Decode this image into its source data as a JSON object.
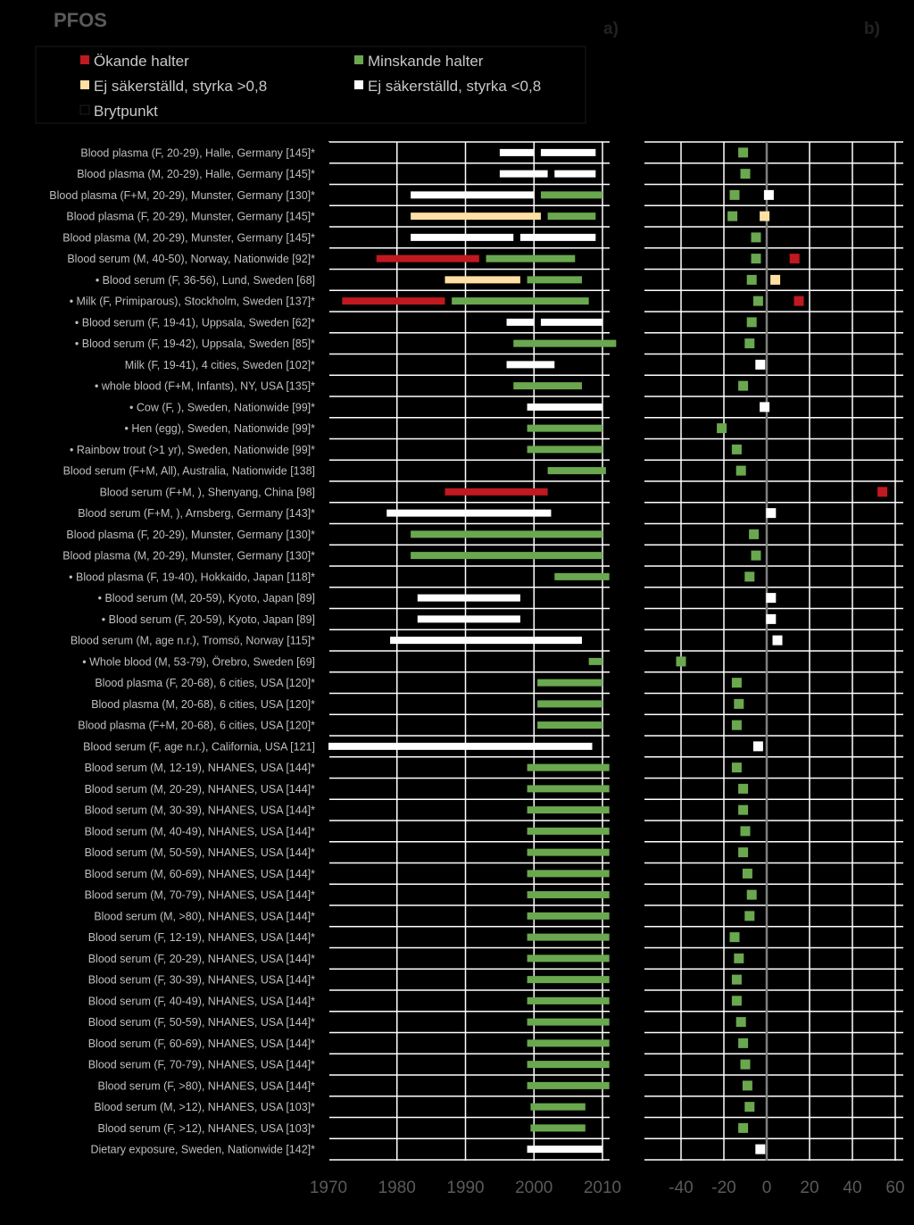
{
  "chart_data": {
    "type": "bar",
    "title": "PFOS",
    "panel_labels": [
      "a)",
      "b)"
    ],
    "colors": {
      "increasing": "#c0191f",
      "decreasing": "#6aa84f",
      "ns_strong": "#fde0a2",
      "ns_weak": "#ffffff",
      "breakpoint": "#000000",
      "gridline": "#ffffff",
      "zero_line": "#7f7f7f"
    },
    "legend": [
      {
        "key": "increasing",
        "label": "Ökande halter"
      },
      {
        "key": "decreasing",
        "label": "Minskande halter"
      },
      {
        "key": "ns_strong",
        "label": "Ej säkerställd, styrka >0,8"
      },
      {
        "key": "ns_weak",
        "label": "Ej säkerställd, styrka <0,8"
      },
      {
        "key": "breakpoint",
        "label": "Brytpunkt"
      }
    ],
    "panel_a": {
      "x_ticks": [
        1970,
        1980,
        1990,
        2000,
        2010
      ],
      "xlim": [
        1970,
        2010
      ]
    },
    "panel_b": {
      "x_ticks": [
        -40,
        -20,
        0,
        20,
        40,
        60
      ],
      "xlim": [
        -50,
        60
      ]
    },
    "rows": [
      {
        "label": "Blood plasma (F, 20-29), Halle, Germany [145]*",
        "segments": [
          [
            1995,
            2000,
            "ns_weak"
          ],
          [
            2001,
            2009,
            "ns_weak"
          ]
        ],
        "change": -11,
        "change_type": "decreasing"
      },
      {
        "label": "Blood plasma (M, 20-29), Halle, Germany [145]*",
        "segments": [
          [
            1995,
            2002,
            "ns_weak"
          ],
          [
            2003,
            2009,
            "ns_weak"
          ]
        ],
        "change": -10,
        "change_type": "decreasing"
      },
      {
        "label": "Blood plasma (F+M, 20-29), Munster, Germany [130]*",
        "segments": [
          [
            1982,
            2000,
            "ns_weak"
          ],
          [
            2001,
            2010,
            "decreasing"
          ]
        ],
        "change": -15,
        "change_type": "decreasing",
        "change2": 1,
        "change2_type": "ns_weak"
      },
      {
        "label": "Blood plasma (F, 20-29), Munster, Germany [145]*",
        "segments": [
          [
            1982,
            2001,
            "ns_strong"
          ],
          [
            2002,
            2009,
            "decreasing"
          ]
        ],
        "change": -16,
        "change_type": "decreasing",
        "change2": -1,
        "change2_type": "ns_strong"
      },
      {
        "label": "Blood plasma (M, 20-29), Munster, Germany [145]*",
        "segments": [
          [
            1982,
            1997,
            "ns_weak"
          ],
          [
            1998,
            2009,
            "ns_weak"
          ]
        ],
        "change": -5,
        "change_type": "decreasing"
      },
      {
        "label": "Blood serum (M, 40-50), Norway, Nationwide [92]*",
        "segments": [
          [
            1977,
            1992,
            "increasing"
          ],
          [
            1993,
            2006,
            "decreasing"
          ]
        ],
        "change": -5,
        "change_type": "decreasing",
        "change2": 13,
        "change2_type": "increasing"
      },
      {
        "label": "• Blood serum (F, 36-56), Lund, Sweden [68]",
        "segments": [
          [
            1987,
            1998,
            "ns_strong"
          ],
          [
            1999,
            2007,
            "decreasing"
          ]
        ],
        "change": -7,
        "change_type": "decreasing",
        "change2": 4,
        "change2_type": "ns_strong"
      },
      {
        "label": "• Milk (F, Primiparous), Stockholm, Sweden [137]*",
        "segments": [
          [
            1972,
            1987,
            "increasing"
          ],
          [
            1988,
            2008,
            "decreasing"
          ]
        ],
        "change": -4,
        "change_type": "decreasing",
        "change2": 15,
        "change2_type": "increasing"
      },
      {
        "label": "• Blood serum (F, 19-41), Uppsala, Sweden [62]*",
        "segments": [
          [
            1996,
            2000,
            "ns_weak"
          ],
          [
            2001,
            2010,
            "ns_weak"
          ]
        ],
        "change": -7,
        "change_type": "decreasing"
      },
      {
        "label": "• Blood serum (F, 19-42), Uppsala, Sweden [85]*",
        "segments": [
          [
            1997,
            2012,
            "decreasing"
          ]
        ],
        "change": -8,
        "change_type": "decreasing"
      },
      {
        "label": "Milk (F, 19-41), 4 cities, Sweden [102]*",
        "segments": [
          [
            1996,
            2003,
            "ns_weak"
          ]
        ],
        "change": -3,
        "change_type": "ns_weak"
      },
      {
        "label": "• whole blood (F+M, Infants), NY, USA [135]*",
        "segments": [
          [
            1997,
            2007,
            "decreasing"
          ]
        ],
        "change": -11,
        "change_type": "decreasing"
      },
      {
        "label": "• Cow (F, ), Sweden, Nationwide [99]*",
        "segments": [
          [
            1999,
            2010,
            "ns_weak"
          ]
        ],
        "change": -1,
        "change_type": "ns_weak"
      },
      {
        "label": "• Hen (egg), Sweden, Nationwide [99]*",
        "segments": [
          [
            1999,
            2010,
            "decreasing"
          ]
        ],
        "change": -21,
        "change_type": "decreasing"
      },
      {
        "label": "• Rainbow trout (>1 yr), Sweden, Nationwide [99]*",
        "segments": [
          [
            1999,
            2010,
            "decreasing"
          ]
        ],
        "change": -14,
        "change_type": "decreasing"
      },
      {
        "label": "Blood serum (F+M, All), Australia, Nationwide [138]",
        "segments": [
          [
            2002,
            2010.5,
            "decreasing"
          ]
        ],
        "change": -12,
        "change_type": "decreasing"
      },
      {
        "label": "Blood serum (F+M, ), Shenyang, China [98]",
        "segments": [
          [
            1987,
            2002,
            "increasing"
          ]
        ],
        "change": 54,
        "change_type": "increasing"
      },
      {
        "label": "Blood serum (F+M, ), Arnsberg, Germany [143]*",
        "segments": [
          [
            1978.5,
            2002.5,
            "ns_weak"
          ]
        ],
        "change": 2,
        "change_type": "ns_weak"
      },
      {
        "label": "Blood plasma (F, 20-29), Munster, Germany [130]*",
        "segments": [
          [
            1982,
            2010,
            "decreasing"
          ]
        ],
        "change": -6,
        "change_type": "decreasing"
      },
      {
        "label": "Blood plasma (M, 20-29), Munster, Germany [130]*",
        "segments": [
          [
            1982,
            2010,
            "decreasing"
          ]
        ],
        "change": -5,
        "change_type": "decreasing"
      },
      {
        "label": "• Blood plasma (F, 19-40), Hokkaido, Japan [118]*",
        "segments": [
          [
            2003,
            2011,
            "decreasing"
          ]
        ],
        "change": -8,
        "change_type": "decreasing"
      },
      {
        "label": "• Blood serum (M, 20-59), Kyoto, Japan [89]",
        "segments": [
          [
            1983,
            1998,
            "ns_weak"
          ]
        ],
        "change": 2,
        "change_type": "ns_weak"
      },
      {
        "label": "• Blood serum (F, 20-59), Kyoto, Japan [89]",
        "segments": [
          [
            1983,
            1998,
            "ns_weak"
          ]
        ],
        "change": 2,
        "change_type": "ns_weak"
      },
      {
        "label": "Blood serum (M, age n.r.), Tromsö, Norway [115]*",
        "segments": [
          [
            1979,
            2007,
            "ns_weak"
          ]
        ],
        "change": 5,
        "change_type": "ns_weak"
      },
      {
        "label": "• Whole blood (M, 53-79), Örebro, Sweden [69]",
        "segments": [
          [
            2008,
            2010,
            "decreasing"
          ]
        ],
        "change": -40,
        "change_type": "decreasing"
      },
      {
        "label": "Blood plasma (F, 20-68), 6 cities, USA [120]*",
        "segments": [
          [
            2000.5,
            2010,
            "decreasing"
          ]
        ],
        "change": -14,
        "change_type": "decreasing"
      },
      {
        "label": "Blood plasma (M, 20-68), 6 cities, USA [120]*",
        "segments": [
          [
            2000.5,
            2010,
            "decreasing"
          ]
        ],
        "change": -13,
        "change_type": "decreasing"
      },
      {
        "label": "Blood plasma (F+M, 20-68), 6 cities, USA [120]*",
        "segments": [
          [
            2000.5,
            2010,
            "decreasing"
          ]
        ],
        "change": -14,
        "change_type": "decreasing"
      },
      {
        "label": "Blood serum (F, age n.r.), California, USA [121]",
        "segments": [
          [
            1970,
            2008.5,
            "ns_weak"
          ]
        ],
        "change": -4,
        "change_type": "ns_weak"
      },
      {
        "label": "Blood serum (M, 12-19), NHANES, USA [144]*",
        "segments": [
          [
            1999,
            2011,
            "decreasing"
          ]
        ],
        "change": -14,
        "change_type": "decreasing"
      },
      {
        "label": "Blood serum (M, 20-29), NHANES, USA [144]*",
        "segments": [
          [
            1999,
            2011,
            "decreasing"
          ]
        ],
        "change": -11,
        "change_type": "decreasing"
      },
      {
        "label": "Blood serum (M, 30-39), NHANES, USA [144]*",
        "segments": [
          [
            1999,
            2011,
            "decreasing"
          ]
        ],
        "change": -11,
        "change_type": "decreasing"
      },
      {
        "label": "Blood serum (M, 40-49), NHANES, USA [144]*",
        "segments": [
          [
            1999,
            2011,
            "decreasing"
          ]
        ],
        "change": -10,
        "change_type": "decreasing"
      },
      {
        "label": "Blood serum (M, 50-59), NHANES, USA [144]*",
        "segments": [
          [
            1999,
            2011,
            "decreasing"
          ]
        ],
        "change": -11,
        "change_type": "decreasing"
      },
      {
        "label": "Blood serum (M, 60-69), NHANES, USA [144]*",
        "segments": [
          [
            1999,
            2011,
            "decreasing"
          ]
        ],
        "change": -9,
        "change_type": "decreasing"
      },
      {
        "label": "Blood serum (M, 70-79), NHANES, USA [144]*",
        "segments": [
          [
            1999,
            2011,
            "decreasing"
          ]
        ],
        "change": -7,
        "change_type": "decreasing"
      },
      {
        "label": "Blood serum (M, >80), NHANES, USA [144]*",
        "segments": [
          [
            1999,
            2011,
            "decreasing"
          ]
        ],
        "change": -8,
        "change_type": "decreasing"
      },
      {
        "label": "Blood serum (F, 12-19), NHANES, USA [144]*",
        "segments": [
          [
            1999,
            2011,
            "decreasing"
          ]
        ],
        "change": -15,
        "change_type": "decreasing"
      },
      {
        "label": "Blood serum (F, 20-29), NHANES, USA [144]*",
        "segments": [
          [
            1999,
            2011,
            "decreasing"
          ]
        ],
        "change": -13,
        "change_type": "decreasing"
      },
      {
        "label": "Blood serum (F, 30-39), NHANES, USA [144]*",
        "segments": [
          [
            1999,
            2011,
            "decreasing"
          ]
        ],
        "change": -14,
        "change_type": "decreasing"
      },
      {
        "label": "Blood serum (F, 40-49), NHANES, USA [144]*",
        "segments": [
          [
            1999,
            2011,
            "decreasing"
          ]
        ],
        "change": -14,
        "change_type": "decreasing"
      },
      {
        "label": "Blood serum (F, 50-59), NHANES, USA [144]*",
        "segments": [
          [
            1999,
            2011,
            "decreasing"
          ]
        ],
        "change": -12,
        "change_type": "decreasing"
      },
      {
        "label": "Blood serum (F, 60-69), NHANES, USA [144]*",
        "segments": [
          [
            1999,
            2011,
            "decreasing"
          ]
        ],
        "change": -11,
        "change_type": "decreasing"
      },
      {
        "label": "Blood serum (F, 70-79), NHANES, USA [144]*",
        "segments": [
          [
            1999,
            2011,
            "decreasing"
          ]
        ],
        "change": -10,
        "change_type": "decreasing"
      },
      {
        "label": "Blood serum (F, >80), NHANES, USA [144]*",
        "segments": [
          [
            1999,
            2011,
            "decreasing"
          ]
        ],
        "change": -9,
        "change_type": "decreasing"
      },
      {
        "label": "Blood serum (M, >12), NHANES, USA [103]*",
        "segments": [
          [
            1999.5,
            2007.5,
            "decreasing"
          ]
        ],
        "change": -8,
        "change_type": "decreasing"
      },
      {
        "label": "Blood serum (F, >12), NHANES, USA [103]*",
        "segments": [
          [
            1999.5,
            2007.5,
            "decreasing"
          ]
        ],
        "change": -11,
        "change_type": "decreasing"
      },
      {
        "label": "Dietary exposure, Sweden, Nationwide [142]*",
        "segments": [
          [
            1999,
            2010,
            "ns_weak"
          ]
        ],
        "change": -3,
        "change_type": "ns_weak"
      }
    ]
  }
}
